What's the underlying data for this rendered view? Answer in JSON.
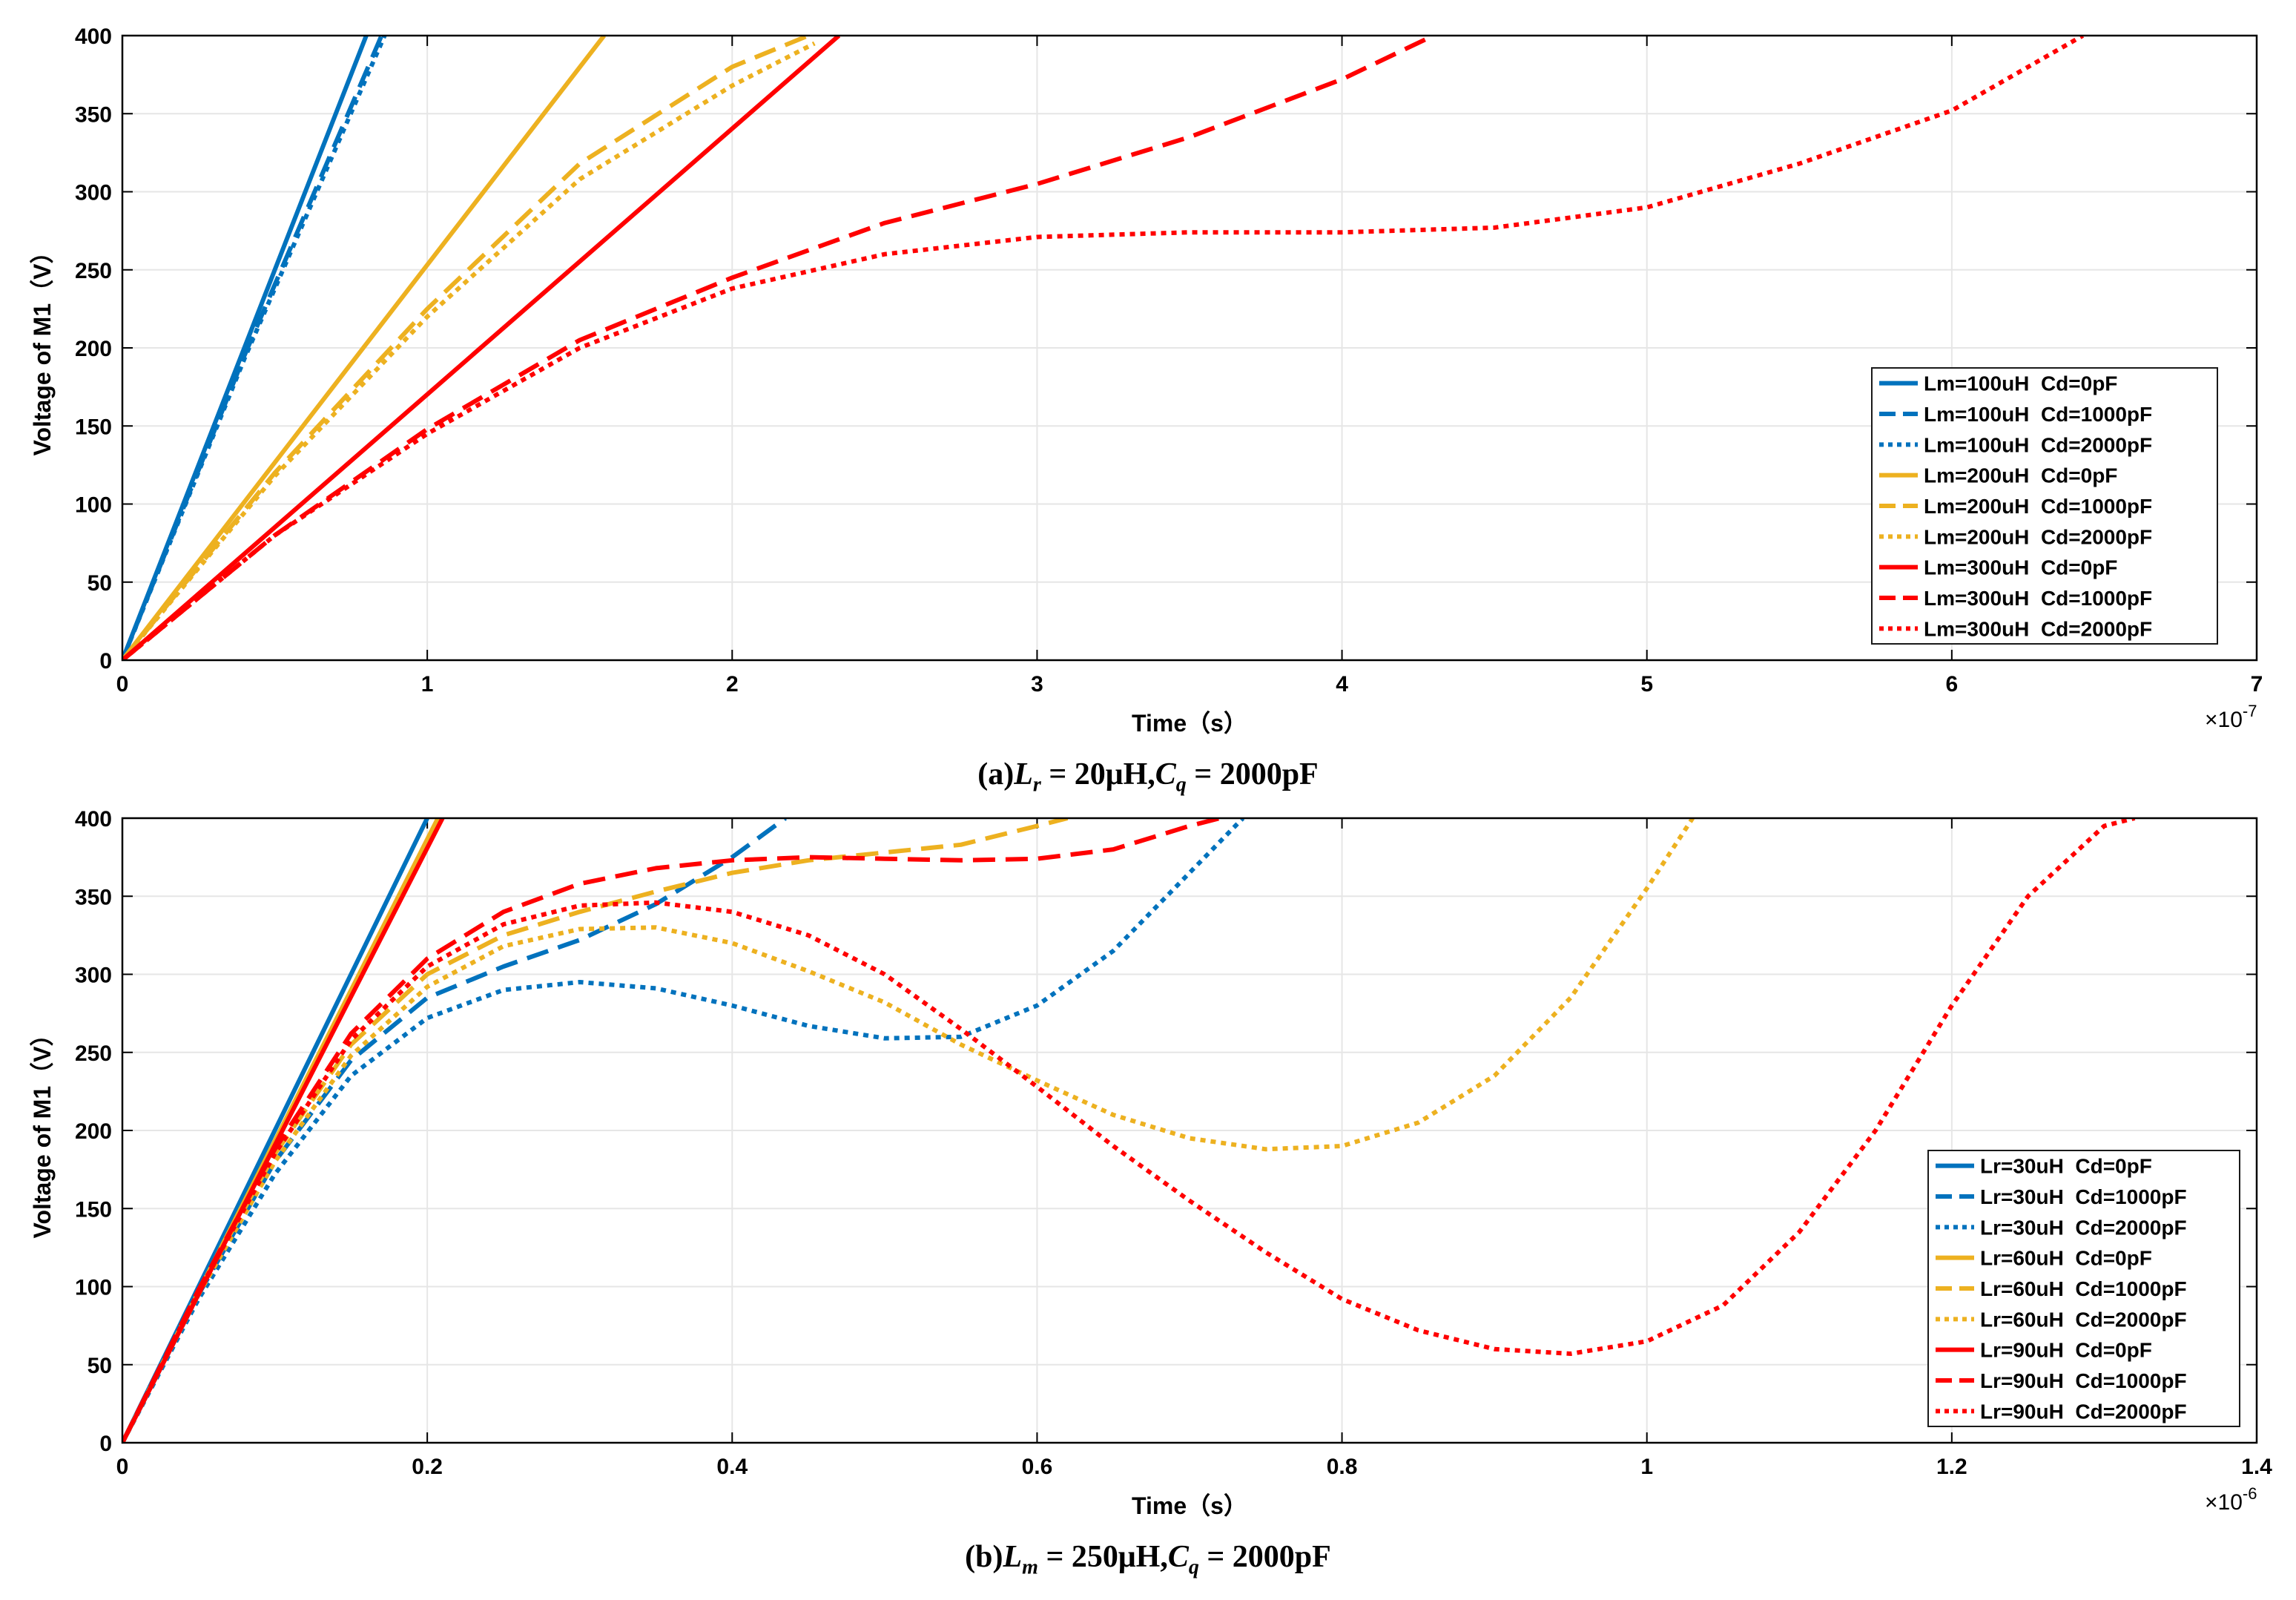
{
  "colors": {
    "blue": "#0072BD",
    "yellow": "#EDB120",
    "red": "#FF0000",
    "grid": "#e6e6e6",
    "axis": "#000000"
  },
  "captions": {
    "a": {
      "prefix": "(a)",
      "v1": "L",
      "s1": "r",
      "t1": " = 20μH,",
      "v2": "C",
      "s2": "q",
      "t2": " = 2000pF"
    },
    "b": {
      "prefix": "(b)",
      "v1": "L",
      "s1": "m",
      "t1": " = 250μH,",
      "v2": "C",
      "s2": "q",
      "t2": " = 2000pF"
    }
  },
  "chart_data": [
    {
      "type": "line",
      "id": "a",
      "xlabel": "Time（s）",
      "ylabel": "Voltage of M1（V）",
      "x_multiplier": "×10",
      "x_multiplier_exp": "-7",
      "xlim": [
        0,
        7
      ],
      "ylim": [
        0,
        400
      ],
      "xticks": [
        0,
        1,
        2,
        3,
        4,
        5,
        6,
        7
      ],
      "xtick_labels": [
        "0",
        "1",
        "2",
        "3",
        "4",
        "5",
        "6",
        "7"
      ],
      "yticks": [
        0,
        50,
        100,
        150,
        200,
        250,
        300,
        350,
        400
      ],
      "ytick_labels": [
        "0",
        "50",
        "100",
        "150",
        "200",
        "250",
        "300",
        "350",
        "400"
      ],
      "grid": true,
      "legend_position": "right-lower",
      "series": [
        {
          "name": "Lm=100uH  Cd=0pF",
          "color": "blue",
          "dash": "solid",
          "x": [
            0,
            0.8
          ],
          "y": [
            0,
            400
          ]
        },
        {
          "name": "Lm=100uH  Cd=1000pF",
          "color": "blue",
          "dash": "dash",
          "x": [
            0,
            0.4,
            0.85
          ],
          "y": [
            0,
            195,
            400
          ]
        },
        {
          "name": "Lm=100uH  Cd=2000pF",
          "color": "blue",
          "dash": "dot",
          "x": [
            0,
            0.4,
            0.86
          ],
          "y": [
            0,
            193,
            400
          ]
        },
        {
          "name": "Lm=200uH  Cd=0pF",
          "color": "yellow",
          "dash": "solid",
          "x": [
            0,
            1.58
          ],
          "y": [
            0,
            400
          ]
        },
        {
          "name": "Lm=200uH  Cd=1000pF",
          "color": "yellow",
          "dash": "dash",
          "x": [
            0,
            0.5,
            1.0,
            1.5,
            2.0,
            2.25
          ],
          "y": [
            0,
            120,
            225,
            318,
            380,
            400
          ]
        },
        {
          "name": "Lm=200uH  Cd=2000pF",
          "color": "yellow",
          "dash": "dot",
          "x": [
            0,
            0.5,
            1.0,
            1.5,
            2.0,
            2.27
          ],
          "y": [
            0,
            118,
            220,
            308,
            368,
            395
          ]
        },
        {
          "name": "Lm=300uH  Cd=0pF",
          "color": "red",
          "dash": "solid",
          "x": [
            0,
            2.35
          ],
          "y": [
            0,
            400
          ]
        },
        {
          "name": "Lm=300uH  Cd=1000pF",
          "color": "red",
          "dash": "dash",
          "x": [
            0,
            0.5,
            1.0,
            1.5,
            2.0,
            2.5,
            3.0,
            3.5,
            4.0,
            4.3
          ],
          "y": [
            0,
            80,
            148,
            205,
            245,
            280,
            305,
            335,
            372,
            400
          ]
        },
        {
          "name": "Lm=300uH  Cd=2000pF",
          "color": "red",
          "dash": "dot",
          "x": [
            0,
            0.5,
            1.0,
            1.5,
            2.0,
            2.5,
            3.0,
            3.5,
            4.0,
            4.5,
            5.0,
            5.5,
            6.0,
            6.43
          ],
          "y": [
            0,
            80,
            145,
            200,
            238,
            260,
            271,
            274,
            274,
            277,
            290,
            318,
            352,
            400
          ]
        }
      ]
    },
    {
      "type": "line",
      "id": "b",
      "xlabel": "Time（s）",
      "ylabel": "Voltage of M1（V）",
      "x_multiplier": "×10",
      "x_multiplier_exp": "-6",
      "xlim": [
        0,
        1.4
      ],
      "ylim": [
        0,
        400
      ],
      "xticks": [
        0,
        0.2,
        0.4,
        0.6,
        0.8,
        1.0,
        1.2,
        1.4
      ],
      "xtick_labels": [
        "0",
        "0.2",
        "0.4",
        "0.6",
        "0.8",
        "1",
        "1.2",
        "1.4"
      ],
      "yticks": [
        0,
        50,
        100,
        150,
        200,
        250,
        300,
        350,
        400
      ],
      "ytick_labels": [
        "0",
        "50",
        "100",
        "150",
        "200",
        "250",
        "300",
        "350",
        "400"
      ],
      "grid": true,
      "legend_position": "right-lower",
      "series": [
        {
          "name": "Lr=30uH  Cd=0pF",
          "color": "blue",
          "dash": "solid",
          "x": [
            0,
            0.2
          ],
          "y": [
            0,
            400
          ]
        },
        {
          "name": "Lr=30uH  Cd=1000pF",
          "color": "blue",
          "dash": "dash",
          "x": [
            0,
            0.05,
            0.1,
            0.15,
            0.2,
            0.25,
            0.3,
            0.35,
            0.4,
            0.435
          ],
          "y": [
            0,
            95,
            180,
            245,
            285,
            305,
            322,
            345,
            375,
            400
          ]
        },
        {
          "name": "Lr=30uH  Cd=2000pF",
          "color": "blue",
          "dash": "dot",
          "x": [
            0,
            0.05,
            0.1,
            0.15,
            0.2,
            0.25,
            0.3,
            0.35,
            0.4,
            0.45,
            0.5,
            0.55,
            0.6,
            0.65,
            0.7,
            0.735
          ],
          "y": [
            0,
            92,
            172,
            235,
            272,
            290,
            295,
            291,
            280,
            267,
            259,
            260,
            280,
            315,
            365,
            400
          ]
        },
        {
          "name": "Lr=60uH  Cd=0pF",
          "color": "yellow",
          "dash": "solid",
          "x": [
            0,
            0.207
          ],
          "y": [
            0,
            400
          ]
        },
        {
          "name": "Lr=60uH  Cd=1000pF",
          "color": "yellow",
          "dash": "dash",
          "x": [
            0,
            0.05,
            0.1,
            0.15,
            0.2,
            0.25,
            0.3,
            0.35,
            0.4,
            0.45,
            0.5,
            0.55,
            0.6,
            0.62
          ],
          "y": [
            0,
            97,
            185,
            255,
            300,
            325,
            340,
            353,
            365,
            373,
            378,
            383,
            395,
            400
          ]
        },
        {
          "name": "Lr=60uH  Cd=2000pF",
          "color": "yellow",
          "dash": "dot",
          "x": [
            0,
            0.05,
            0.1,
            0.15,
            0.2,
            0.25,
            0.3,
            0.35,
            0.4,
            0.45,
            0.5,
            0.55,
            0.6,
            0.65,
            0.7,
            0.75,
            0.8,
            0.85,
            0.9,
            0.95,
            1.0,
            1.03
          ],
          "y": [
            0,
            95,
            180,
            248,
            292,
            318,
            329,
            330,
            320,
            302,
            282,
            255,
            232,
            210,
            195,
            188,
            190,
            205,
            235,
            285,
            355,
            400
          ]
        },
        {
          "name": "Lr=90uH  Cd=0pF",
          "color": "red",
          "dash": "solid",
          "x": [
            0,
            0.21
          ],
          "y": [
            0,
            400
          ]
        },
        {
          "name": "Lr=90uH  Cd=1000pF",
          "color": "red",
          "dash": "dash",
          "x": [
            0,
            0.05,
            0.1,
            0.15,
            0.2,
            0.25,
            0.3,
            0.35,
            0.4,
            0.45,
            0.5,
            0.55,
            0.6,
            0.65,
            0.7,
            0.72
          ],
          "y": [
            0,
            98,
            188,
            262,
            310,
            340,
            358,
            368,
            373,
            375,
            374,
            373,
            374,
            380,
            395,
            400
          ]
        },
        {
          "name": "Lr=90uH  Cd=2000pF",
          "color": "red",
          "dash": "dot",
          "x": [
            0,
            0.05,
            0.1,
            0.15,
            0.2,
            0.25,
            0.3,
            0.35,
            0.4,
            0.45,
            0.5,
            0.55,
            0.6,
            0.65,
            0.7,
            0.75,
            0.8,
            0.85,
            0.9,
            0.95,
            1.0,
            1.05,
            1.1,
            1.15,
            1.2,
            1.25,
            1.3,
            1.32
          ],
          "y": [
            0,
            97,
            185,
            258,
            305,
            332,
            344,
            346,
            340,
            325,
            300,
            265,
            228,
            190,
            155,
            122,
            92,
            72,
            60,
            57,
            65,
            88,
            135,
            200,
            280,
            350,
            395,
            400
          ]
        }
      ]
    }
  ]
}
